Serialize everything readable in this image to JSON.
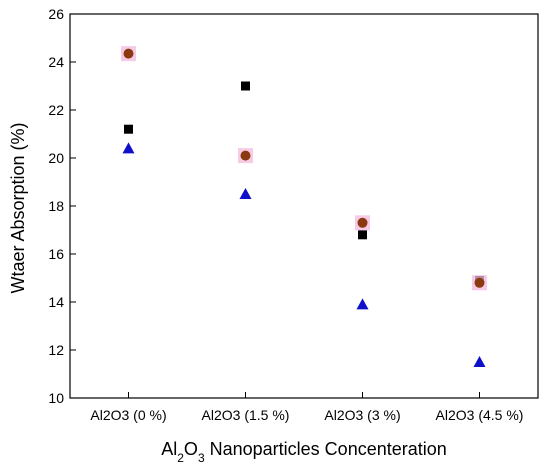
{
  "chart_data": {
    "type": "scatter",
    "title": "",
    "xlabel": "Al2O3 Nanoparticles Concenteration",
    "xlabel_parts": [
      {
        "text": "Al",
        "sub": false
      },
      {
        "text": "2",
        "sub": true
      },
      {
        "text": "O",
        "sub": false
      },
      {
        "text": "3",
        "sub": true
      },
      {
        "text": " Nanoparticles Concenteration",
        "sub": false
      }
    ],
    "ylabel": "Wtaer Absorption (%)",
    "ylim": [
      10,
      26
    ],
    "yticks": [
      10,
      12,
      14,
      16,
      18,
      20,
      22,
      24,
      26
    ],
    "categories": [
      "Al2O3 (0 %)",
      "Al2O3 (1.5 %)",
      "Al2O3 (3 %)",
      "Al2O3 (4.5 %)"
    ],
    "grid": false,
    "legend": "none",
    "series": [
      {
        "marker": "square",
        "color": "#000000",
        "values": [
          21.2,
          23.0,
          16.8,
          14.9
        ]
      },
      {
        "marker": "circle",
        "color": "#8B3A0F",
        "halo": "#f4b8dc",
        "values": [
          24.35,
          20.1,
          17.3,
          14.8
        ]
      },
      {
        "marker": "triangle",
        "color": "#1010c8",
        "values": [
          20.4,
          18.5,
          13.9,
          11.5
        ]
      }
    ]
  }
}
